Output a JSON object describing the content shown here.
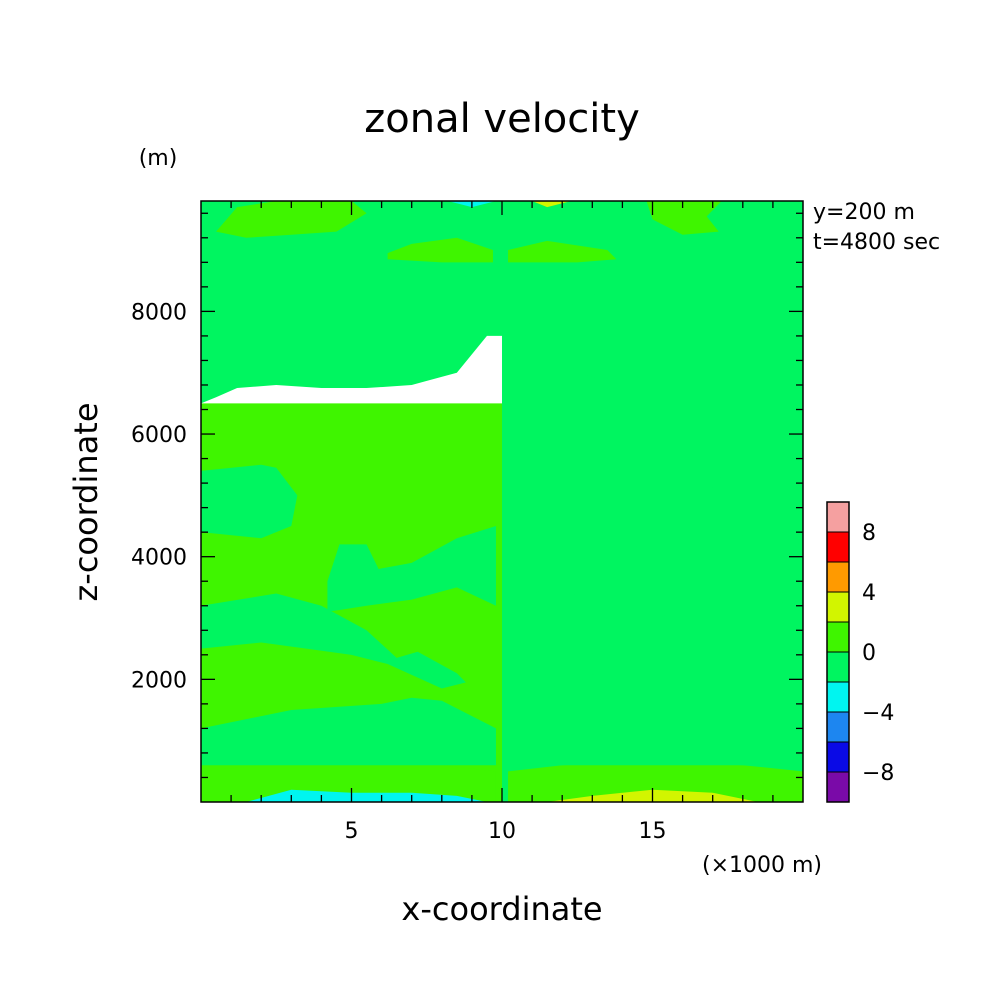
{
  "chart_data": {
    "type": "heatmap",
    "title": "zonal velocity",
    "xlabel": "x-coordinate",
    "ylabel": "z-coordinate",
    "x_unit": "(×1000 m)",
    "y_unit": "(m)",
    "annotations": [
      "y=200 m",
      "t=4800 sec"
    ],
    "xlim": [
      0,
      20
    ],
    "ylim": [
      0,
      9800
    ],
    "x_ticks": [
      5,
      10,
      15
    ],
    "x_tick_labels": [
      "5",
      "10",
      "15"
    ],
    "y_ticks": [
      2000,
      4000,
      6000,
      8000
    ],
    "y_tick_labels": [
      "2000",
      "4000",
      "6000",
      "8000"
    ],
    "colorbar": {
      "levels": [
        -10,
        -8,
        -6,
        -4,
        -2,
        0,
        2,
        4,
        6,
        8,
        10
      ],
      "colors": [
        "#7a0aa8",
        "#0a0ae6",
        "#1d86f0",
        "#00f5f0",
        "#00f560",
        "#3ff500",
        "#d2f500",
        "#ff9a00",
        "#ff0000",
        "#f5a0a0"
      ],
      "tick_values": [
        -8,
        -4,
        0,
        4,
        8
      ],
      "tick_labels": [
        "−8",
        "−4",
        "0",
        "4",
        "8"
      ]
    },
    "regions": [
      {
        "value_band": "-2..0",
        "color": "#00f560",
        "x": [
          0,
          0.5,
          1.2,
          2.5,
          4,
          5.5,
          7,
          8.5,
          9.5,
          10,
          10
        ],
        "z": [
          6500,
          6600,
          6750,
          6800,
          6750,
          6750,
          6800,
          7000,
          7600,
          7600,
          9800
        ]
      },
      {
        "value_band": "-2..0",
        "color": "#00f560",
        "x": [
          10,
          10.5,
          11.5,
          12.5,
          14,
          15.5,
          17,
          18.5,
          20,
          20
        ],
        "z": [
          7600,
          7650,
          7500,
          7000,
          6800,
          6750,
          6800,
          6750,
          6550,
          9800
        ]
      },
      {
        "value_band": "-2..0",
        "color": "#00f560",
        "x": [
          10,
          20
        ],
        "z": [
          0,
          9800
        ]
      },
      {
        "value_band": "0..2",
        "color": "#3ff500",
        "x": [
          0,
          20
        ],
        "z": [
          0,
          6500
        ]
      },
      {
        "value_band": "-4..-2",
        "color": "#00f5f0",
        "x": [
          1.5,
          3,
          5,
          7,
          8.5,
          9.5
        ],
        "z": [
          0,
          200,
          150,
          150,
          100,
          0
        ]
      },
      {
        "value_band": "-4..-2",
        "color": "#00f5f0",
        "x": [
          8.2,
          9.0,
          9.8
        ],
        "z": [
          9800,
          9700,
          9800
        ]
      },
      {
        "value_band": "2..4",
        "color": "#d2f500",
        "x": [
          11.5,
          13,
          15,
          17,
          18.5
        ],
        "z": [
          0,
          100,
          200,
          150,
          0
        ]
      },
      {
        "value_band": "2..4",
        "color": "#d2f500",
        "x": [
          11,
          11.5,
          12.3
        ],
        "z": [
          9800,
          9700,
          9800
        ]
      }
    ]
  }
}
